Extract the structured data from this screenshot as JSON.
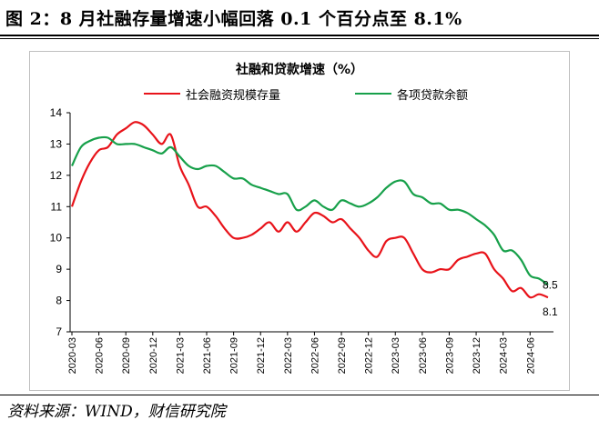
{
  "figure": {
    "title": "图 2：8 月社融存量增速小幅回落 0.1 个百分点至 8.1%",
    "source": "资料来源：WIND，财信研究院"
  },
  "chart_data": {
    "type": "line",
    "title": "社融和贷款增速（%）",
    "xlabel": "",
    "ylabel": "",
    "ylim": [
      7,
      14
    ],
    "yticks": [
      7,
      8,
      9,
      10,
      11,
      12,
      13,
      14
    ],
    "grid": false,
    "legend_position": "top",
    "x": [
      "2020-03",
      "2020-04",
      "2020-05",
      "2020-06",
      "2020-07",
      "2020-08",
      "2020-09",
      "2020-10",
      "2020-11",
      "2020-12",
      "2021-01",
      "2021-02",
      "2021-03",
      "2021-04",
      "2021-05",
      "2021-06",
      "2021-07",
      "2021-08",
      "2021-09",
      "2021-10",
      "2021-11",
      "2021-12",
      "2022-01",
      "2022-02",
      "2022-03",
      "2022-04",
      "2022-05",
      "2022-06",
      "2022-07",
      "2022-08",
      "2022-09",
      "2022-10",
      "2022-11",
      "2022-12",
      "2023-01",
      "2023-02",
      "2023-03",
      "2023-04",
      "2023-05",
      "2023-06",
      "2023-07",
      "2023-08",
      "2023-09",
      "2023-10",
      "2023-11",
      "2023-12",
      "2024-01",
      "2024-02",
      "2024-03",
      "2024-04",
      "2024-05",
      "2024-06",
      "2024-07",
      "2024-08"
    ],
    "xtick_labels": [
      "2020-03",
      "2020-06",
      "2020-09",
      "2020-12",
      "2021-03",
      "2021-06",
      "2021-09",
      "2021-12",
      "2022-03",
      "2022-06",
      "2022-09",
      "2022-12",
      "2023-03",
      "2023-06",
      "2023-09",
      "2023-12",
      "2024-03",
      "2024-06"
    ],
    "series": [
      {
        "name": "社会融资规模存量",
        "color": "#e8131a",
        "values": [
          11.0,
          11.8,
          12.4,
          12.8,
          12.9,
          13.3,
          13.5,
          13.7,
          13.6,
          13.3,
          13.0,
          13.3,
          12.3,
          11.7,
          11.0,
          11.0,
          10.7,
          10.3,
          10.0,
          10.0,
          10.1,
          10.3,
          10.5,
          10.2,
          10.5,
          10.2,
          10.5,
          10.8,
          10.7,
          10.5,
          10.6,
          10.3,
          10.0,
          9.6,
          9.4,
          9.9,
          10.0,
          10.0,
          9.5,
          9.0,
          8.9,
          9.0,
          9.0,
          9.3,
          9.4,
          9.5,
          9.5,
          9.0,
          8.7,
          8.3,
          8.4,
          8.1,
          8.2,
          8.1
        ],
        "end_label": "8.1"
      },
      {
        "name": "各项贷款余额",
        "color": "#17a04a",
        "values": [
          12.3,
          12.9,
          13.1,
          13.2,
          13.2,
          13.0,
          13.0,
          13.0,
          12.9,
          12.8,
          12.7,
          12.9,
          12.6,
          12.3,
          12.2,
          12.3,
          12.3,
          12.1,
          11.9,
          11.9,
          11.7,
          11.6,
          11.5,
          11.4,
          11.4,
          10.9,
          11.0,
          11.2,
          11.0,
          10.9,
          11.2,
          11.1,
          11.0,
          11.1,
          11.3,
          11.6,
          11.8,
          11.8,
          11.4,
          11.3,
          11.1,
          11.1,
          10.9,
          10.9,
          10.8,
          10.6,
          10.4,
          10.1,
          9.6,
          9.6,
          9.3,
          8.8,
          8.7,
          8.5
        ],
        "end_label": "8.5"
      }
    ]
  }
}
